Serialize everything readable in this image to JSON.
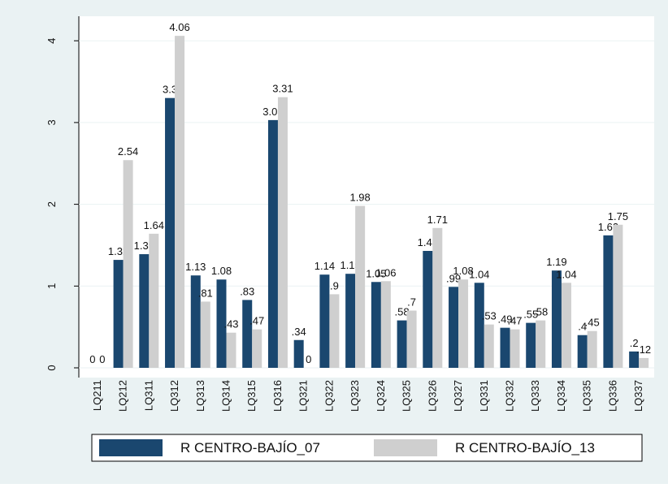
{
  "chart_data": {
    "type": "bar",
    "categories": [
      "LQ211",
      "LQ212",
      "LQ311",
      "LQ312",
      "LQ313",
      "LQ314",
      "LQ315",
      "LQ316",
      "LQ321",
      "LQ322",
      "LQ323",
      "LQ324",
      "LQ325",
      "LQ326",
      "LQ327",
      "LQ331",
      "LQ332",
      "LQ333",
      "LQ334",
      "LQ335",
      "LQ336",
      "LQ337"
    ],
    "series": [
      {
        "name": "R CENTRO-BAJÍO_07",
        "color": "#1a476f",
        "values": [
          0,
          1.32,
          1.39,
          3.3,
          1.13,
          1.08,
          0.83,
          3.03,
          0.34,
          1.14,
          1.15,
          1.05,
          0.58,
          1.43,
          0.99,
          1.04,
          0.49,
          0.55,
          1.19,
          0.4,
          1.62,
          0.2
        ],
        "value_labels": [
          "0",
          "1.32",
          "1.39",
          "3.3",
          "1.13",
          "1.08",
          ".83",
          "3.03",
          ".34",
          "1.14",
          "1.15",
          "1.05",
          ".58",
          "1.43",
          ".99",
          "1.04",
          ".49",
          ".55",
          "1.19",
          ".4",
          "1.62",
          ".2"
        ]
      },
      {
        "name": "R CENTRO-BAJÍO_13",
        "color": "#cfcfcf",
        "values": [
          0,
          2.54,
          1.64,
          4.06,
          0.81,
          0.43,
          0.47,
          3.31,
          0,
          0.9,
          1.98,
          1.06,
          0.7,
          1.71,
          1.08,
          0.53,
          0.47,
          0.58,
          1.04,
          0.45,
          1.75,
          0.12
        ],
        "value_labels": [
          "0",
          "2.54",
          "1.64",
          "4.06",
          ".81",
          ".43",
          ".47",
          "3.31",
          "0",
          ".9",
          "1.98",
          "1.06",
          ".7",
          "1.71",
          "1.08",
          ".53",
          ".47",
          ".58",
          "1.04",
          ".45",
          "1.75",
          ".12"
        ]
      }
    ],
    "ylim": [
      0,
      4.3
    ],
    "yticks": [
      0,
      1,
      2,
      3,
      4
    ],
    "grid": true,
    "legend": "bottom"
  }
}
